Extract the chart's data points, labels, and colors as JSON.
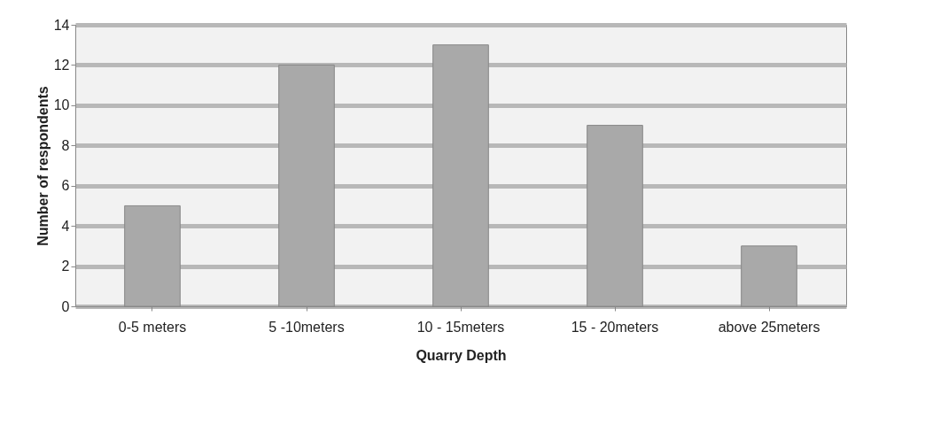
{
  "chart_data": {
    "type": "bar",
    "xlabel": "Quarry Depth",
    "ylabel": "Number of respondents",
    "categories": [
      "0-5 meters",
      "5 -10meters",
      "10 - 15meters",
      "15 - 20meters",
      "above 25meters"
    ],
    "values": [
      5,
      12,
      13,
      9,
      3
    ],
    "color": "#a9a9a9",
    "ylim": [
      0,
      14
    ],
    "yticks": [
      0,
      2,
      4,
      6,
      8,
      10,
      12,
      14
    ],
    "grid": "y"
  }
}
